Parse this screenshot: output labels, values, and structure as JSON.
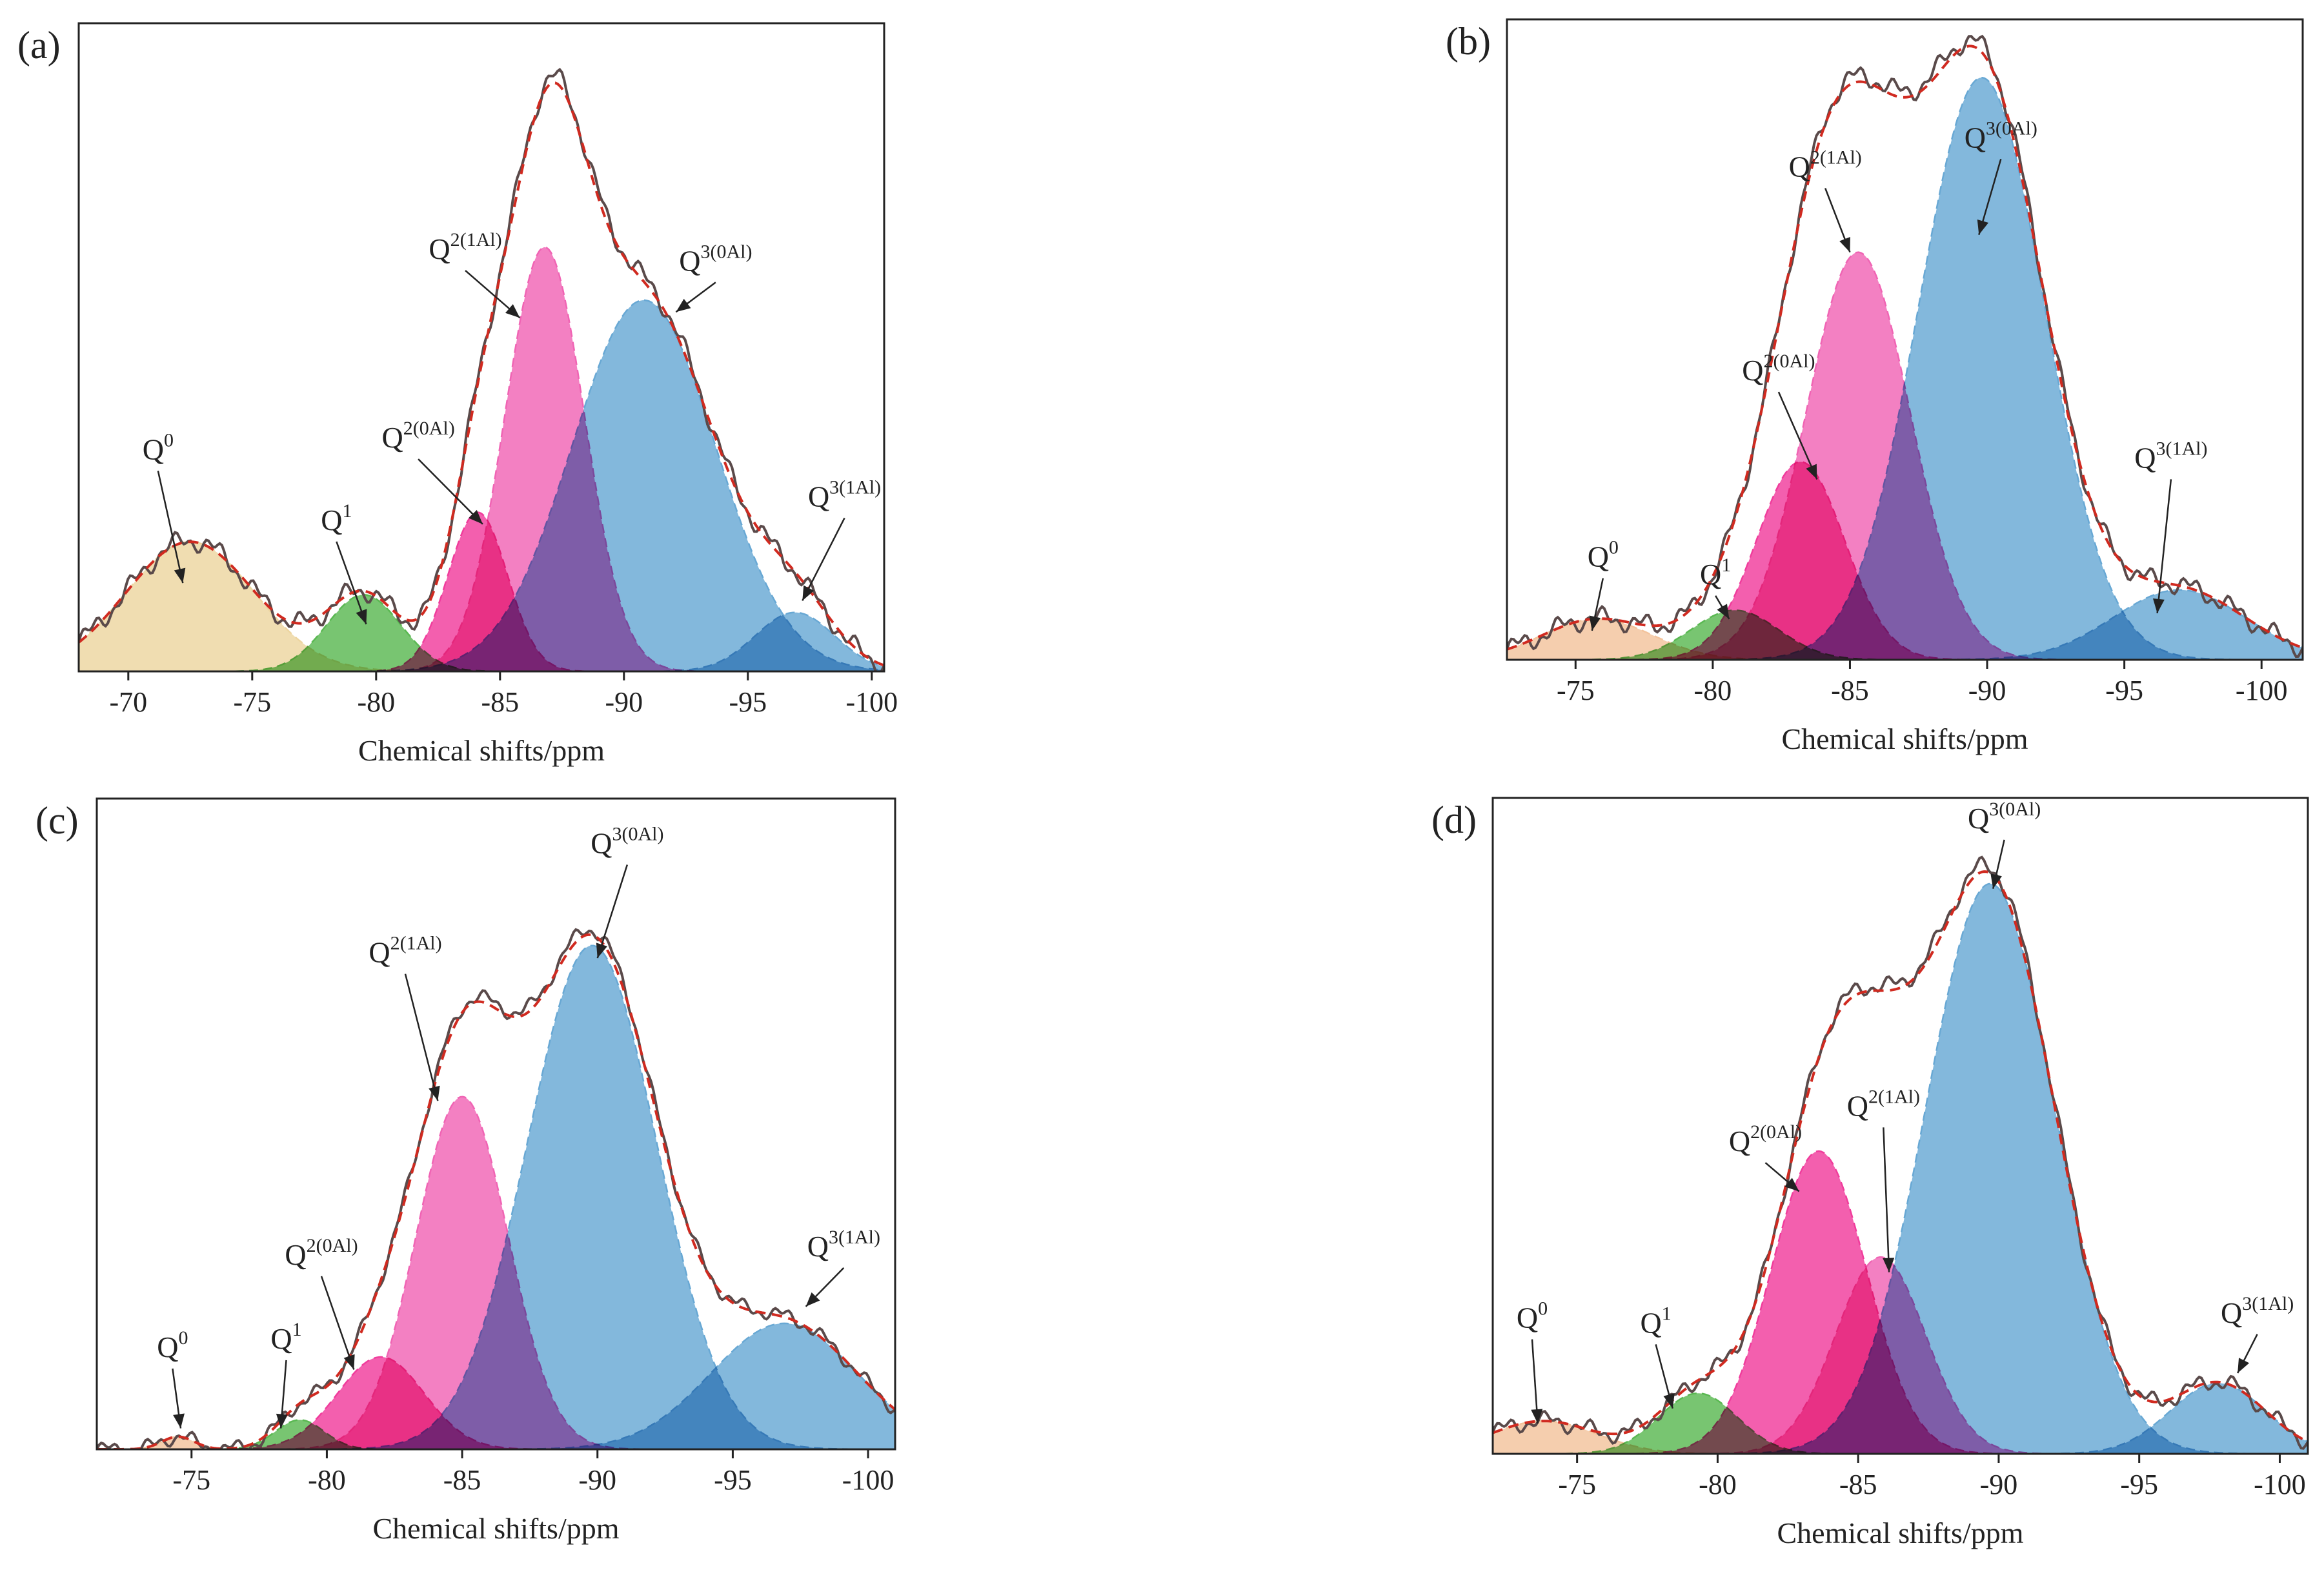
{
  "figure": {
    "colors": {
      "Q0_a": "#edd5a0",
      "Q0": "#f3c39c",
      "Q1": "#5ab852",
      "Q2_1Al": "#f064b4",
      "Q2_0Al": "#f03c9c",
      "Q3_0Al": "#68a8d4",
      "Q3_1Al": "#68a8d4",
      "experimental": "#5a4a4a",
      "fit": "#d02a20"
    }
  },
  "chart_data": [
    {
      "panel_label": "(a)",
      "type": "area",
      "xlabel": "Chemical shifts/ppm",
      "ylabel": "",
      "xlim": [
        -68,
        -100.5
      ],
      "ylim": [
        0,
        1.1
      ],
      "xticks": [
        -70,
        -75,
        -80,
        -85,
        -90,
        -95,
        -100
      ],
      "xtick_labels": [
        "-70",
        "-75",
        "-80",
        "-85",
        "-90",
        "-95",
        "-100"
      ],
      "series": [
        {
          "name": "Q0",
          "color_key": "Q0_a",
          "center": -72.5,
          "height": 0.22,
          "width": 2.6
        },
        {
          "name": "Q1",
          "color_key": "Q1",
          "center": -79.5,
          "height": 0.13,
          "width": 1.5
        },
        {
          "name": "Q2(0Al)",
          "color_key": "Q2_0Al",
          "center": -84.1,
          "height": 0.27,
          "width": 1.2
        },
        {
          "name": "Q2(1Al)",
          "color_key": "Q2_1Al",
          "center": -86.8,
          "height": 0.72,
          "width": 1.6
        },
        {
          "name": "Q3(0Al)",
          "color_key": "Q3_0Al",
          "center": -90.8,
          "height": 0.63,
          "width": 2.9
        },
        {
          "name": "Q3(1Al)",
          "color_key": "Q3_1Al",
          "center": -96.9,
          "height": 0.1,
          "width": 1.6
        }
      ],
      "annotations": [
        {
          "base": "Q",
          "sup": "0",
          "target_x": -72.2,
          "target_y": 0.15,
          "text_x": -71.2,
          "text_y": 0.36
        },
        {
          "base": "Q",
          "sup": "1",
          "target_x": -79.6,
          "target_y": 0.08,
          "text_x": -78.4,
          "text_y": 0.24
        },
        {
          "base": "Q",
          "sup": "2(0Al)",
          "target_x": -84.3,
          "target_y": 0.25,
          "text_x": -81.7,
          "text_y": 0.38
        },
        {
          "base": "Q",
          "sup": "2(1Al)",
          "target_x": -85.8,
          "target_y": 0.6,
          "text_x": -83.6,
          "text_y": 0.7
        },
        {
          "base": "Q",
          "sup": "3(0Al)",
          "target_x": -92.1,
          "target_y": 0.61,
          "text_x": -93.7,
          "text_y": 0.68
        },
        {
          "base": "Q",
          "sup": "3(1Al)",
          "target_x": -97.2,
          "target_y": 0.12,
          "text_x": -98.9,
          "text_y": 0.28
        }
      ]
    },
    {
      "panel_label": "(b)",
      "type": "area",
      "xlabel": "Chemical shifts/ppm",
      "ylabel": "",
      "xlim": [
        -72.5,
        -101.5
      ],
      "ylim": [
        0,
        1.1
      ],
      "xticks": [
        -75,
        -80,
        -85,
        -90,
        -95,
        -100
      ],
      "xtick_labels": [
        "-75",
        "-80",
        "-85",
        "-90",
        "-95",
        "-100"
      ],
      "series": [
        {
          "name": "Q0",
          "color_key": "Q0",
          "center": -75.8,
          "height": 0.07,
          "width": 2.0
        },
        {
          "name": "Q1",
          "color_key": "Q1",
          "center": -80.8,
          "height": 0.085,
          "width": 1.6
        },
        {
          "name": "Q2(0Al)",
          "color_key": "Q2_0Al",
          "center": -83.2,
          "height": 0.34,
          "width": 1.6
        },
        {
          "name": "Q2(1Al)",
          "color_key": "Q2_1Al",
          "center": -85.3,
          "height": 0.7,
          "width": 1.9
        },
        {
          "name": "Q3(0Al)",
          "color_key": "Q3_0Al",
          "center": -89.8,
          "height": 1.0,
          "width": 2.3
        },
        {
          "name": "Q3(1Al)",
          "color_key": "Q3_1Al",
          "center": -97.0,
          "height": 0.12,
          "width": 2.4
        }
      ],
      "annotations": [
        {
          "base": "Q",
          "sup": "0",
          "target_x": -75.6,
          "target_y": 0.05,
          "text_x": -76.0,
          "text_y": 0.16
        },
        {
          "base": "Q",
          "sup": "1",
          "target_x": -80.6,
          "target_y": 0.07,
          "text_x": -80.1,
          "text_y": 0.13
        },
        {
          "base": "Q",
          "sup": "2(0Al)",
          "target_x": -83.8,
          "target_y": 0.31,
          "text_x": -82.4,
          "text_y": 0.48
        },
        {
          "base": "Q",
          "sup": "2(1Al)",
          "target_x": -85.0,
          "target_y": 0.7,
          "text_x": -84.1,
          "text_y": 0.83
        },
        {
          "base": "Q",
          "sup": "3(0Al)",
          "target_x": -89.7,
          "target_y": 0.73,
          "text_x": -90.5,
          "text_y": 0.88
        },
        {
          "base": "Q",
          "sup": "3(1Al)",
          "target_x": -96.2,
          "target_y": 0.08,
          "text_x": -96.7,
          "text_y": 0.33
        }
      ]
    },
    {
      "panel_label": "(c)",
      "type": "area",
      "xlabel": "Chemical shifts/ppm",
      "ylabel": "",
      "xlim": [
        -71.5,
        -101
      ],
      "ylim": [
        0,
        1.55
      ],
      "xticks": [
        -75,
        -80,
        -85,
        -90,
        -95,
        -100
      ],
      "xtick_labels": [
        "-75",
        "-80",
        "-85",
        "-90",
        "-95",
        "-100"
      ],
      "series": [
        {
          "name": "Q0",
          "color_key": "Q0",
          "center": -74.5,
          "height": 0.03,
          "width": 0.6
        },
        {
          "name": "Q1",
          "color_key": "Q1",
          "center": -79.0,
          "height": 0.07,
          "width": 0.9
        },
        {
          "name": "Q2(0Al)",
          "color_key": "Q2_0Al",
          "center": -82.0,
          "height": 0.22,
          "width": 1.6
        },
        {
          "name": "Q2(1Al)",
          "color_key": "Q2_1Al",
          "center": -85.0,
          "height": 0.84,
          "width": 1.7
        },
        {
          "name": "Q3(0Al)",
          "color_key": "Q3_0Al",
          "center": -89.8,
          "height": 1.2,
          "width": 2.4
        },
        {
          "name": "Q3(1Al)",
          "color_key": "Q3_1Al",
          "center": -96.9,
          "height": 0.3,
          "width": 2.7
        }
      ],
      "annotations": [
        {
          "base": "Q",
          "sup": "0",
          "target_x": -74.6,
          "target_y": 0.05,
          "text_x": -74.3,
          "text_y": 0.22
        },
        {
          "base": "Q",
          "sup": "1",
          "target_x": -78.3,
          "target_y": 0.05,
          "text_x": -78.5,
          "text_y": 0.24
        },
        {
          "base": "Q",
          "sup": "2(0Al)",
          "target_x": -81.0,
          "target_y": 0.19,
          "text_x": -79.8,
          "text_y": 0.44
        },
        {
          "base": "Q",
          "sup": "2(1Al)",
          "target_x": -84.1,
          "target_y": 0.83,
          "text_x": -82.9,
          "text_y": 1.16
        },
        {
          "base": "Q",
          "sup": "3(0Al)",
          "target_x": -90.0,
          "target_y": 1.17,
          "text_x": -91.1,
          "text_y": 1.42
        },
        {
          "base": "Q",
          "sup": "3(1Al)",
          "target_x": -97.7,
          "target_y": 0.34,
          "text_x": -99.1,
          "text_y": 0.46
        }
      ]
    },
    {
      "panel_label": "(d)",
      "type": "area",
      "xlabel": "Chemical shifts/ppm",
      "ylabel": "",
      "xlim": [
        -72,
        -101
      ],
      "ylim": [
        0,
        1.3
      ],
      "xticks": [
        -75,
        -80,
        -85,
        -90,
        -95,
        -100
      ],
      "xtick_labels": [
        "-75",
        "-80",
        "-85",
        "-90",
        "-95",
        "-100"
      ],
      "series": [
        {
          "name": "Q0",
          "color_key": "Q0",
          "center": -73.8,
          "height": 0.065,
          "width": 1.9
        },
        {
          "name": "Q1",
          "color_key": "Q1",
          "center": -79.3,
          "height": 0.12,
          "width": 1.4
        },
        {
          "name": "Q2(0Al)",
          "color_key": "Q2_0Al",
          "center": -83.6,
          "height": 0.6,
          "width": 1.7
        },
        {
          "name": "Q2(1Al)",
          "color_key": "Q2_1Al",
          "center": -85.8,
          "height": 0.39,
          "width": 1.6
        },
        {
          "name": "Q3(0Al)",
          "color_key": "Q3_0Al",
          "center": -89.7,
          "height": 1.13,
          "width": 2.3
        },
        {
          "name": "Q3(1Al)",
          "color_key": "Q3_1Al",
          "center": -97.8,
          "height": 0.14,
          "width": 1.7
        }
      ],
      "annotations": [
        {
          "base": "Q",
          "sup": "0",
          "target_x": -73.6,
          "target_y": 0.06,
          "text_x": -73.4,
          "text_y": 0.25
        },
        {
          "base": "Q",
          "sup": "1",
          "target_x": -78.4,
          "target_y": 0.09,
          "text_x": -77.8,
          "text_y": 0.24
        },
        {
          "base": "Q",
          "sup": "2(0Al)",
          "target_x": -82.9,
          "target_y": 0.52,
          "text_x": -81.7,
          "text_y": 0.6
        },
        {
          "base": "Q",
          "sup": "2(1Al)",
          "target_x": -86.1,
          "target_y": 0.36,
          "text_x": -85.9,
          "text_y": 0.67
        },
        {
          "base": "Q",
          "sup": "3(0Al)",
          "target_x": -89.8,
          "target_y": 1.12,
          "text_x": -90.2,
          "text_y": 1.24
        },
        {
          "base": "Q",
          "sup": "3(1Al)",
          "target_x": -98.5,
          "target_y": 0.16,
          "text_x": -99.2,
          "text_y": 0.26
        }
      ]
    }
  ]
}
